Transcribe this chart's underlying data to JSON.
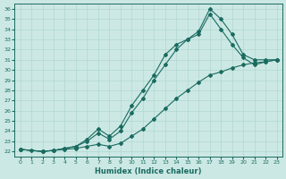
{
  "xlabel": "Humidex (Indice chaleur)",
  "xlim_min": -0.5,
  "xlim_max": 23.5,
  "ylim_min": 21.5,
  "ylim_max": 36.5,
  "xticks": [
    0,
    1,
    2,
    3,
    4,
    5,
    6,
    7,
    8,
    9,
    10,
    11,
    12,
    13,
    14,
    15,
    16,
    17,
    18,
    19,
    20,
    21,
    22,
    23
  ],
  "yticks": [
    22,
    23,
    24,
    25,
    26,
    27,
    28,
    29,
    30,
    31,
    32,
    33,
    34,
    35,
    36
  ],
  "bg_color": "#cce8e4",
  "line_color": "#1a6b60",
  "grid_color": "#b0d8d0",
  "line1_x": [
    0,
    1,
    2,
    3,
    4,
    5,
    6,
    7,
    8,
    9,
    10,
    11,
    12,
    13,
    14,
    15,
    16,
    17,
    18,
    19,
    20,
    21,
    22,
    23
  ],
  "line1_y": [
    22.2,
    22.1,
    22.0,
    22.1,
    22.2,
    22.3,
    22.5,
    22.7,
    22.5,
    22.8,
    23.5,
    24.2,
    25.2,
    26.2,
    27.2,
    28.0,
    28.8,
    29.5,
    29.8,
    30.2,
    30.5,
    30.7,
    30.8,
    31.0
  ],
  "line2_x": [
    0,
    2,
    3,
    4,
    5,
    6,
    7,
    8,
    9,
    10,
    11,
    12,
    13,
    14,
    15,
    16,
    17,
    18,
    19,
    20,
    21,
    22,
    23
  ],
  "line2_y": [
    22.2,
    22.0,
    22.1,
    22.3,
    22.5,
    23.2,
    24.2,
    23.5,
    24.5,
    26.5,
    28.0,
    29.5,
    31.5,
    32.5,
    33.0,
    33.8,
    36.0,
    35.0,
    33.5,
    31.5,
    31.0,
    31.0,
    31.0
  ],
  "line3_x": [
    0,
    2,
    3,
    4,
    5,
    6,
    7,
    8,
    9,
    10,
    11,
    12,
    13,
    14,
    15,
    16,
    17,
    18,
    19,
    20,
    21,
    22,
    23
  ],
  "line3_y": [
    22.2,
    22.0,
    22.1,
    22.3,
    22.5,
    23.0,
    23.8,
    23.2,
    24.0,
    25.8,
    27.2,
    29.0,
    30.5,
    32.0,
    33.0,
    33.5,
    35.5,
    34.0,
    32.5,
    31.2,
    30.5,
    30.8,
    31.0
  ]
}
